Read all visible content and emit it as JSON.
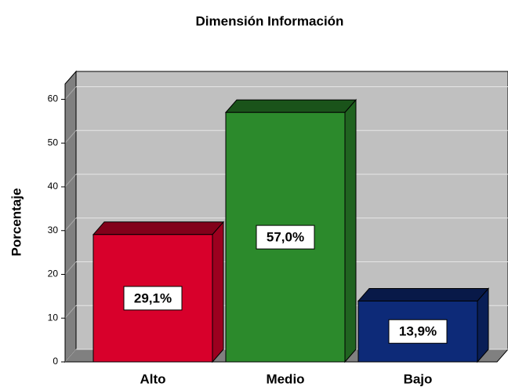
{
  "chart_data": {
    "type": "bar3d",
    "title": "Dimensión Información",
    "y_label": "Porcentaje",
    "categories": [
      "Alto",
      "Medio",
      "Bajo"
    ],
    "values": [
      29.1,
      57.0,
      13.9
    ],
    "value_labels": [
      "29,1%",
      "57,0%",
      "13,9%"
    ],
    "colors": [
      "#d8002b",
      "#2c8a2c",
      "#0d2a78"
    ],
    "ylim": [
      0,
      63.5
    ],
    "yticks": [
      0,
      10,
      20,
      30,
      40,
      50,
      60
    ],
    "grid": true
  }
}
